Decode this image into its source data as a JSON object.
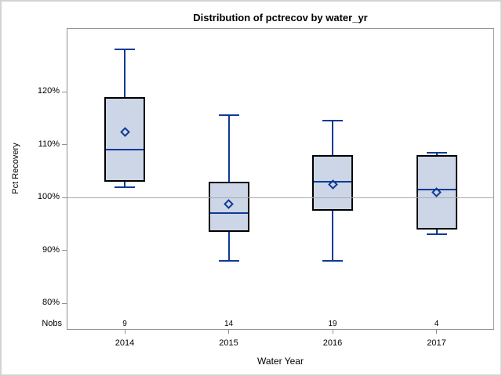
{
  "title": "Distribution of pctrecov by water_yr",
  "y_axis": {
    "label": "Pct Recovery",
    "ticks": [
      {
        "value": 120,
        "label": "120%"
      },
      {
        "value": 110,
        "label": "110%"
      },
      {
        "value": 100,
        "label": "100%"
      },
      {
        "value": 90,
        "label": "90%"
      },
      {
        "value": 80,
        "label": "80%"
      }
    ]
  },
  "x_axis": {
    "label": "Water Year",
    "categories": [
      "2014",
      "2015",
      "2016",
      "2017"
    ]
  },
  "nobs_label": "Nobs",
  "colors": {
    "box_fill": "#ccd6e6",
    "box_border": "#000000",
    "line_blue": "#0f3a97",
    "axis_gray": "#8e9095",
    "ref_line_gray": "#aaaaaa",
    "outer_border": "#d3d3d3"
  },
  "chart_data": {
    "type": "box",
    "title": "Distribution of pctrecov by water_yr",
    "xlabel": "Water Year",
    "ylabel": "Pct Recovery",
    "categories": [
      "2014",
      "2015",
      "2016",
      "2017"
    ],
    "y_tick_values": [
      80,
      90,
      100,
      110,
      120
    ],
    "y_tick_labels": [
      "80%",
      "90%",
      "100%",
      "110%",
      "120%"
    ],
    "reference_line": 100,
    "grid": false,
    "legend": false,
    "series": [
      {
        "category": "2014",
        "nobs": 9,
        "min": 102,
        "q1": 103,
        "median": 109,
        "q3": 119,
        "max": 128,
        "mean": 112.3
      },
      {
        "category": "2015",
        "nobs": 14,
        "min": 88,
        "q1": 93.5,
        "median": 97,
        "q3": 103,
        "max": 115.5,
        "mean": 98.8
      },
      {
        "category": "2016",
        "nobs": 19,
        "min": 88,
        "q1": 97.5,
        "median": 103,
        "q3": 108,
        "max": 114.5,
        "mean": 102.5
      },
      {
        "category": "2017",
        "nobs": 4,
        "min": 93,
        "q1": 94,
        "median": 101.5,
        "q3": 108,
        "max": 108.5,
        "mean": 101
      }
    ]
  }
}
